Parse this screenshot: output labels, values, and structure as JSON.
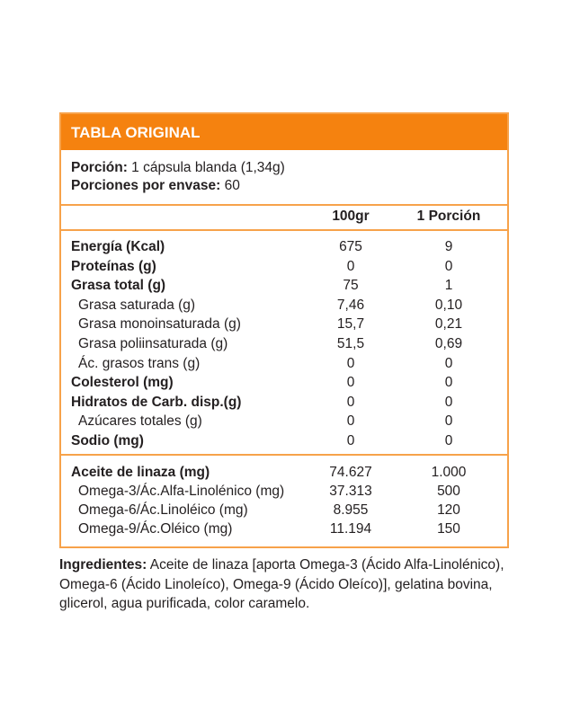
{
  "title": "TABLA ORIGINAL",
  "portion": {
    "label": "Porción:",
    "value": " 1 cápsula blanda (1,34g)"
  },
  "servings": {
    "label": "Porciones por envase:",
    "value": " 60"
  },
  "columns": [
    "100gr",
    "1 Porción"
  ],
  "nutrients": [
    {
      "name": "Energía (Kcal)",
      "v100": "675",
      "vp": "9",
      "bold": true
    },
    {
      "name": "Proteínas (g)",
      "v100": "0",
      "vp": "0",
      "bold": true
    },
    {
      "name": "Grasa total (g)",
      "v100": "75",
      "vp": "1",
      "bold": true
    },
    {
      "name": "Grasa saturada (g)",
      "v100": "7,46",
      "vp": "0,10"
    },
    {
      "name": "Grasa monoinsaturada (g)",
      "v100": "15,7",
      "vp": "0,21"
    },
    {
      "name": "Grasa poliinsaturada (g)",
      "v100": "51,5",
      "vp": "0,69"
    },
    {
      "name": "Ác. grasos trans (g)",
      "v100": "0",
      "vp": "0"
    },
    {
      "name": "Colesterol (mg)",
      "v100": "0",
      "vp": "0",
      "bold": true
    },
    {
      "name": "Hidratos de Carb. disp.(g)",
      "v100": "0",
      "vp": "0",
      "bold": true
    },
    {
      "name": "Azúcares totales (g)",
      "v100": "0",
      "vp": "0"
    },
    {
      "name": "Sodio (mg)",
      "v100": "0",
      "vp": "0",
      "bold": true
    }
  ],
  "oils": [
    {
      "name": "Aceite de linaza (mg)",
      "v100": "74.627",
      "vp": "1.000",
      "bold": true
    },
    {
      "name": "Omega-3/Ác.Alfa-Linolénico (mg)",
      "v100": "37.313",
      "vp": "500"
    },
    {
      "name": "Omega-6/Ác.Linoléico (mg)",
      "v100": "8.955",
      "vp": "120"
    },
    {
      "name": "Omega-9/Ác.Oléico (mg)",
      "v100": "11.194",
      "vp": "150"
    }
  ],
  "ingredients": {
    "label": "Ingredientes:",
    "text": " Aceite de linaza [aporta Omega-3 (Ácido Alfa-Linolénico), Omega-6 (Ácido Linoleíco), Omega-9 (Ácido Oleíco)], gelatina bovina, glicerol, agua purificada, color caramelo."
  },
  "colors": {
    "accent": "#f5820f",
    "border": "#f7a24a"
  }
}
